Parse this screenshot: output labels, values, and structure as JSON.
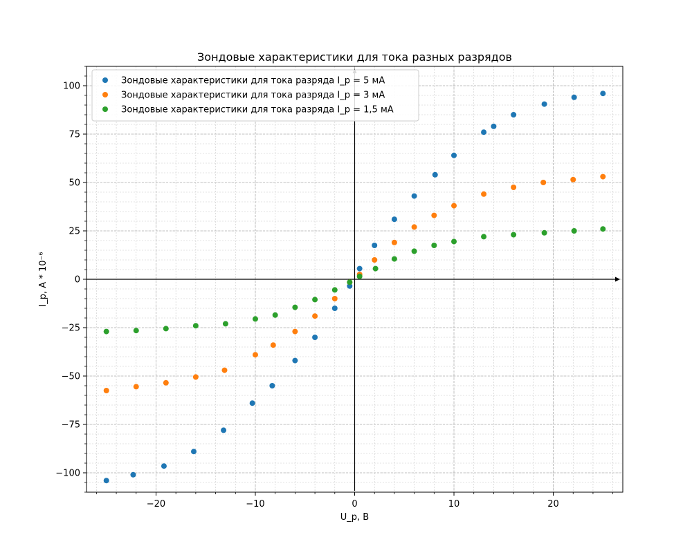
{
  "chart_data": {
    "type": "scatter",
    "title": "Зондовые характеристики для тока разных разрядов",
    "xlabel": "U_p, B",
    "ylabel": "I_p, A * 10⁻⁶",
    "xlim": [
      -27,
      27
    ],
    "ylim": [
      -110,
      110
    ],
    "xticks": [
      -20,
      -10,
      0,
      10,
      20
    ],
    "yticks": [
      -100,
      -75,
      -50,
      -25,
      0,
      25,
      50,
      75,
      100
    ],
    "xtick_labels": [
      "−20",
      "−10",
      "0",
      "10",
      "20"
    ],
    "ytick_labels": [
      "−100",
      "−75",
      "−50",
      "−25",
      "0",
      "25",
      "50",
      "75",
      "100"
    ],
    "grid": true,
    "minor_grid": true,
    "legend_position": "top-left",
    "series": [
      {
        "name": "Зондовые характеристики для тока разряда I_p = 5 мА",
        "color": "#1f77b4",
        "points": [
          [
            -25,
            -104
          ],
          [
            -22.3,
            -101
          ],
          [
            -19.2,
            -96.5
          ],
          [
            -16.2,
            -89
          ],
          [
            -13.2,
            -78
          ],
          [
            -10.3,
            -64
          ],
          [
            -8.3,
            -55
          ],
          [
            -6,
            -42
          ],
          [
            -4,
            -30
          ],
          [
            -2,
            -15
          ],
          [
            -0.5,
            -3.5
          ],
          [
            0.5,
            5.5
          ],
          [
            2,
            17.5
          ],
          [
            4,
            31
          ],
          [
            6,
            43
          ],
          [
            8.1,
            54
          ],
          [
            10,
            64
          ],
          [
            13,
            76
          ],
          [
            14,
            79
          ],
          [
            16,
            85
          ],
          [
            19.1,
            90.5
          ],
          [
            22.1,
            94
          ],
          [
            25,
            96
          ]
        ]
      },
      {
        "name": "Зондовые характеристики для тока разряда I_p = 3 мА",
        "color": "#ff7f0e",
        "points": [
          [
            -25,
            -57.5
          ],
          [
            -22,
            -55.5
          ],
          [
            -19,
            -53.5
          ],
          [
            -16,
            -50.5
          ],
          [
            -13.1,
            -47
          ],
          [
            -10,
            -39
          ],
          [
            -8.2,
            -34
          ],
          [
            -6,
            -27
          ],
          [
            -4,
            -19
          ],
          [
            -2,
            -10
          ],
          [
            -0.5,
            -1.5
          ],
          [
            0.5,
            2.5
          ],
          [
            2,
            10
          ],
          [
            4,
            19
          ],
          [
            6,
            27
          ],
          [
            8,
            33
          ],
          [
            10,
            38
          ],
          [
            13,
            44
          ],
          [
            16,
            47.5
          ],
          [
            19,
            50
          ],
          [
            22,
            51.5
          ],
          [
            25,
            53
          ]
        ]
      },
      {
        "name": "Зондовые характеристики для тока разряда I_p = 1,5 мА",
        "color": "#2ca02c",
        "points": [
          [
            -25,
            -27
          ],
          [
            -22,
            -26.5
          ],
          [
            -19,
            -25.5
          ],
          [
            -16,
            -24
          ],
          [
            -13,
            -23
          ],
          [
            -10,
            -20.5
          ],
          [
            -8,
            -18.5
          ],
          [
            -6,
            -14.5
          ],
          [
            -4,
            -10.5
          ],
          [
            -2,
            -5.5
          ],
          [
            -0.5,
            -1.5
          ],
          [
            0.5,
            1.5
          ],
          [
            2.1,
            5.5
          ],
          [
            4,
            10.5
          ],
          [
            6,
            14.5
          ],
          [
            8,
            17.5
          ],
          [
            10,
            19.5
          ],
          [
            13,
            22
          ],
          [
            16,
            23
          ],
          [
            19.1,
            24
          ],
          [
            22.1,
            25
          ],
          [
            25,
            26
          ]
        ]
      }
    ]
  }
}
